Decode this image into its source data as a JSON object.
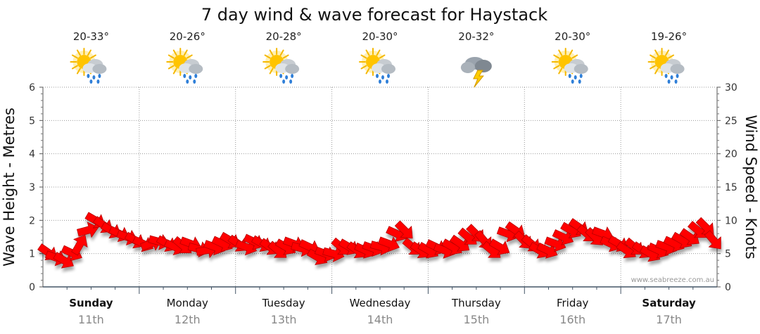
{
  "chart_data": {
    "type": "line",
    "title": "7 day wind & wave forecast for Haystack",
    "ylabel_left": "Wave Height - Metres",
    "ylabel_right": "Wind Speed - Knots",
    "ylim_left": [
      0,
      6
    ],
    "ylim_right": [
      0,
      30
    ],
    "yticks_left": [
      "0",
      "1",
      "2",
      "3",
      "4",
      "5",
      "6"
    ],
    "yticks_right": [
      "0",
      "5",
      "10",
      "15",
      "20",
      "25",
      "30"
    ],
    "grid": true,
    "credit": "www.seabreeze.com.au",
    "days": [
      {
        "day": "Sunday",
        "date": "11th",
        "temp": "20-33°",
        "weather": "sun-cloud-rain-icon",
        "bold": true
      },
      {
        "day": "Monday",
        "date": "12th",
        "temp": "20-26°",
        "weather": "sun-cloud-rain-icon",
        "bold": false
      },
      {
        "day": "Tuesday",
        "date": "13th",
        "temp": "20-28°",
        "weather": "sun-cloud-rain-icon",
        "bold": false
      },
      {
        "day": "Wednesday",
        "date": "14th",
        "temp": "20-30°",
        "weather": "sun-cloud-rain-icon",
        "bold": false
      },
      {
        "day": "Thursday",
        "date": "15th",
        "temp": "20-32°",
        "weather": "storm-cloud-icon",
        "bold": false
      },
      {
        "day": "Friday",
        "date": "16th",
        "temp": "20-30°",
        "weather": "sun-cloud-rain-icon",
        "bold": false
      },
      {
        "day": "Saturday",
        "date": "17th",
        "temp": "19-26°",
        "weather": "sun-cloud-rain-icon",
        "bold": true
      }
    ],
    "series": [
      {
        "name": "",
        "axis": "right",
        "unit": "knots",
        "color": "#ff0000",
        "values": [
          5.2,
          4.4,
          4.0,
          5.1,
          6.3,
          8.5,
          10.0,
          9.3,
          8.5,
          8.0,
          7.5,
          7.0,
          6.5,
          6.5,
          6.8,
          6.5,
          6.0,
          6.2,
          6.5,
          5.7,
          5.5,
          6.0,
          6.5,
          7.0,
          6.5,
          6.0,
          6.8,
          6.5,
          6.0,
          5.5,
          6.0,
          6.5,
          5.8,
          6.0,
          4.5,
          5.0,
          5.0,
          6.0,
          6.0,
          5.5,
          5.5,
          5.8,
          6.0,
          6.5,
          8.0,
          8.5,
          6.0,
          5.5,
          5.5,
          6.0,
          5.5,
          6.0,
          6.5,
          7.5,
          8.0,
          7.0,
          5.5,
          6.0,
          8.0,
          8.5,
          7.0,
          6.5,
          5.5,
          5.5,
          6.5,
          7.5,
          8.5,
          9.0,
          8.0,
          7.5,
          8.0,
          6.5,
          6.5,
          5.5,
          6.0,
          5.5,
          5.0,
          5.5,
          6.0,
          6.5,
          7.0,
          7.5,
          8.5,
          9.0,
          7.0
        ]
      }
    ]
  }
}
